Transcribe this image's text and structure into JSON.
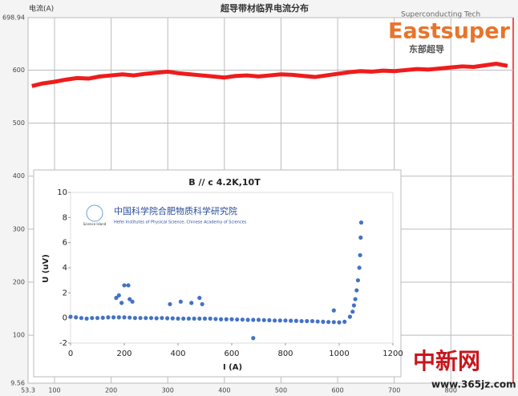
{
  "chart_data": [
    {
      "type": "line",
      "title": "超导带材临界电流分布",
      "y_label": "电流(A)",
      "x": [
        60,
        80,
        100,
        120,
        140,
        160,
        180,
        200,
        220,
        240,
        260,
        280,
        300,
        320,
        340,
        360,
        380,
        400,
        420,
        440,
        460,
        480,
        500,
        520,
        540,
        560,
        580,
        600,
        620,
        640,
        660,
        680,
        700,
        720,
        740,
        760,
        780,
        800,
        820,
        840,
        860,
        880,
        900
      ],
      "series": [
        {
          "name": "Ic",
          "color": "#ee1c1c",
          "values": [
            570,
            575,
            578,
            582,
            585,
            584,
            588,
            590,
            592,
            590,
            593,
            595,
            597,
            594,
            592,
            590,
            588,
            586,
            589,
            590,
            588,
            590,
            592,
            591,
            589,
            587,
            590,
            593,
            596,
            598,
            597,
            599,
            598,
            600,
            602,
            601,
            603,
            605,
            607,
            606,
            609,
            612,
            608
          ]
        }
      ],
      "xlim": [
        53.3,
        910
      ],
      "ylim": [
        9.56,
        698.94
      ],
      "xticks": [
        53.3,
        100,
        200,
        300,
        400,
        500,
        600,
        700,
        800
      ],
      "yticks": [
        9.56,
        100,
        200,
        300,
        400,
        500,
        600,
        698.94
      ],
      "grid": true
    },
    {
      "type": "scatter",
      "title": "B // c  4.2K,10T",
      "x_label": "I (A)",
      "y_label": "U (uV)",
      "series": [
        {
          "name": "U",
          "color": "#4472c4",
          "x": [
            0,
            20,
            40,
            60,
            80,
            100,
            120,
            140,
            160,
            180,
            200,
            220,
            240,
            260,
            280,
            300,
            320,
            340,
            360,
            380,
            400,
            420,
            440,
            460,
            480,
            500,
            520,
            540,
            560,
            580,
            600,
            620,
            640,
            660,
            680,
            700,
            720,
            740,
            760,
            780,
            800,
            820,
            840,
            860,
            880,
            900,
            920,
            940,
            960,
            980,
            1000,
            1020,
            1040,
            1050,
            1055,
            1060,
            1065,
            1070,
            1075,
            1078,
            1080,
            1082,
            170,
            180,
            190,
            200,
            215,
            220,
            230,
            370,
            410,
            450,
            480,
            490,
            680,
            980
          ],
          "values": [
            0.1,
            0.05,
            0,
            -0.05,
            0,
            0,
            0.02,
            0.05,
            0.05,
            0.05,
            0.05,
            0.03,
            0,
            0,
            0,
            0,
            -0.02,
            0,
            -0.02,
            -0.03,
            -0.05,
            -0.05,
            -0.05,
            -0.05,
            -0.05,
            -0.05,
            -0.05,
            -0.08,
            -0.1,
            -0.1,
            -0.1,
            -0.12,
            -0.13,
            -0.15,
            -0.15,
            -0.15,
            -0.17,
            -0.18,
            -0.2,
            -0.2,
            -0.2,
            -0.22,
            -0.23,
            -0.25,
            -0.25,
            -0.25,
            -0.28,
            -0.3,
            -0.32,
            -0.33,
            -0.35,
            -0.3,
            0.1,
            0.5,
            1,
            1.5,
            2.2,
            3,
            4,
            5,
            6.4,
            7.6,
            1.6,
            1.8,
            1.2,
            2.6,
            2.6,
            1.5,
            1.3,
            1.1,
            1.3,
            1.2,
            1.6,
            1.1,
            -1.6,
            0.6
          ]
        }
      ],
      "xlim": [
        0,
        1200
      ],
      "ylim": [
        -2,
        10
      ],
      "xticks": [
        0,
        200,
        400,
        600,
        800,
        1000,
        1200
      ],
      "yticks": [
        -2,
        0,
        2,
        4,
        6,
        8,
        10
      ]
    }
  ],
  "logo": {
    "sub": "Superconducting Tech",
    "name": "Eastsuper",
    "cn": "东部超导"
  },
  "inset_logo": {
    "island": "Science Island",
    "cn": "中国科学院合肥物质科学研究院",
    "en": "Hefei Institutes of Physical Science, Chinese Academy of Sciences"
  },
  "watermark": {
    "cn": "中新网",
    "url": "www.365jz.com"
  }
}
